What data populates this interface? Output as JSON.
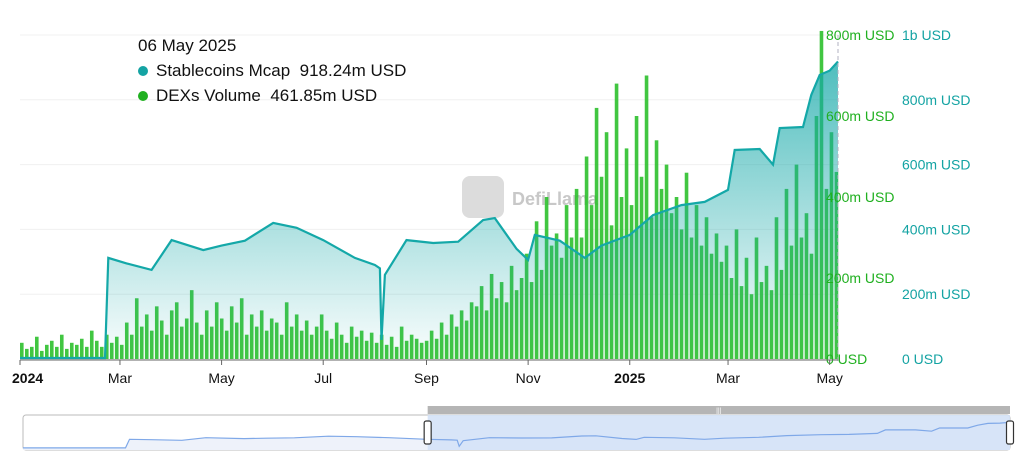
{
  "tooltip": {
    "date": "06 May 2025",
    "rows": [
      {
        "label": "Stablecoins Mcap",
        "value": "918.24m USD"
      },
      {
        "label": "DEXs Volume",
        "value": "461.85m USD"
      }
    ]
  },
  "watermark": "DefiLlama",
  "chart_data": {
    "type": "bar+area",
    "x_ticks": [
      {
        "label": "2024",
        "date": "2024-01-01",
        "bold": true
      },
      {
        "label": "Mar",
        "date": "2024-03-01"
      },
      {
        "label": "May",
        "date": "2024-05-01"
      },
      {
        "label": "Jul",
        "date": "2024-07-01"
      },
      {
        "label": "Sep",
        "date": "2024-09-01"
      },
      {
        "label": "Nov",
        "date": "2024-11-01"
      },
      {
        "label": "2025",
        "date": "2025-01-01",
        "bold": true
      },
      {
        "label": "Mar",
        "date": "2025-03-01"
      },
      {
        "label": "May",
        "date": "2025-05-01"
      }
    ],
    "xlim": [
      "2024-01-01",
      "2025-05-06"
    ],
    "y_left": {
      "ticks": [
        "0 USD",
        "200m USD",
        "400m USD",
        "600m USD",
        "800m USD"
      ],
      "ylim": [
        0,
        800
      ],
      "unit": "m USD",
      "color": "#20b020"
    },
    "y_right": {
      "ticks": [
        "0 USD",
        "200m USD",
        "400m USD",
        "600m USD",
        "800m USD",
        "1b USD"
      ],
      "ylim": [
        0,
        1000
      ],
      "unit": "m USD",
      "color": "#14a3a3"
    },
    "grid": true,
    "series": [
      {
        "name": "Stablecoins Mcap",
        "type": "area",
        "axis": "right",
        "color": "#14a8a8",
        "points": [
          [
            "2024-01-01",
            3
          ],
          [
            "2024-02-21",
            3
          ],
          [
            "2024-02-23",
            312
          ],
          [
            "2024-03-05",
            295
          ],
          [
            "2024-03-20",
            275
          ],
          [
            "2024-04-01",
            367
          ],
          [
            "2024-04-20",
            336
          ],
          [
            "2024-05-01",
            350
          ],
          [
            "2024-05-15",
            365
          ],
          [
            "2024-06-01",
            420
          ],
          [
            "2024-06-15",
            405
          ],
          [
            "2024-07-01",
            367
          ],
          [
            "2024-07-20",
            312
          ],
          [
            "2024-08-01",
            290
          ],
          [
            "2024-08-04",
            280
          ],
          [
            "2024-08-05",
            59
          ],
          [
            "2024-08-07",
            260
          ],
          [
            "2024-08-20",
            367
          ],
          [
            "2024-09-05",
            358
          ],
          [
            "2024-09-20",
            362
          ],
          [
            "2024-10-05",
            429
          ],
          [
            "2024-10-12",
            435
          ],
          [
            "2024-10-25",
            340
          ],
          [
            "2024-11-01",
            306
          ],
          [
            "2024-11-05",
            383
          ],
          [
            "2024-11-20",
            365
          ],
          [
            "2024-12-05",
            312
          ],
          [
            "2024-12-15",
            350
          ],
          [
            "2025-01-01",
            383
          ],
          [
            "2025-01-15",
            444
          ],
          [
            "2025-02-01",
            475
          ],
          [
            "2025-02-15",
            485
          ],
          [
            "2025-03-01",
            522
          ],
          [
            "2025-03-05",
            645
          ],
          [
            "2025-03-20",
            648
          ],
          [
            "2025-03-28",
            600
          ],
          [
            "2025-04-01",
            713
          ],
          [
            "2025-04-15",
            716
          ],
          [
            "2025-04-20",
            815
          ],
          [
            "2025-04-25",
            877
          ],
          [
            "2025-05-01",
            890
          ],
          [
            "2025-05-06",
            918.24
          ]
        ]
      },
      {
        "name": "DEXs Volume",
        "type": "bar",
        "axis": "left",
        "color": "#2cc02c",
        "start": "2024-01-01",
        "step_days": 3,
        "values": [
          40,
          25,
          30,
          55,
          20,
          35,
          45,
          30,
          60,
          25,
          40,
          35,
          50,
          30,
          70,
          45,
          30,
          60,
          40,
          55,
          35,
          90,
          60,
          150,
          80,
          110,
          70,
          130,
          95,
          60,
          120,
          140,
          80,
          100,
          170,
          90,
          60,
          120,
          80,
          140,
          100,
          70,
          130,
          90,
          150,
          60,
          110,
          80,
          120,
          70,
          100,
          90,
          60,
          140,
          80,
          110,
          70,
          95,
          60,
          80,
          110,
          70,
          50,
          90,
          60,
          40,
          80,
          55,
          70,
          45,
          65,
          40,
          60,
          35,
          55,
          30,
          80,
          45,
          60,
          50,
          40,
          45,
          70,
          50,
          90,
          60,
          110,
          80,
          120,
          95,
          140,
          130,
          180,
          120,
          210,
          150,
          190,
          140,
          230,
          170,
          200,
          260,
          190,
          340,
          220,
          400,
          280,
          310,
          250,
          380,
          300,
          420,
          300,
          500,
          380,
          620,
          450,
          560,
          330,
          680,
          400,
          520,
          380,
          600,
          450,
          700,
          350,
          540,
          420,
          480,
          360,
          400,
          320,
          460,
          300,
          380,
          280,
          350,
          260,
          310,
          240,
          280,
          200,
          320,
          180,
          250,
          160,
          300,
          190,
          230,
          170,
          350,
          220,
          420,
          280,
          480,
          300,
          360,
          260,
          600,
          810,
          420,
          560,
          461.85
        ]
      }
    ]
  },
  "minimap": {
    "selection": [
      0.41,
      1.0
    ]
  }
}
